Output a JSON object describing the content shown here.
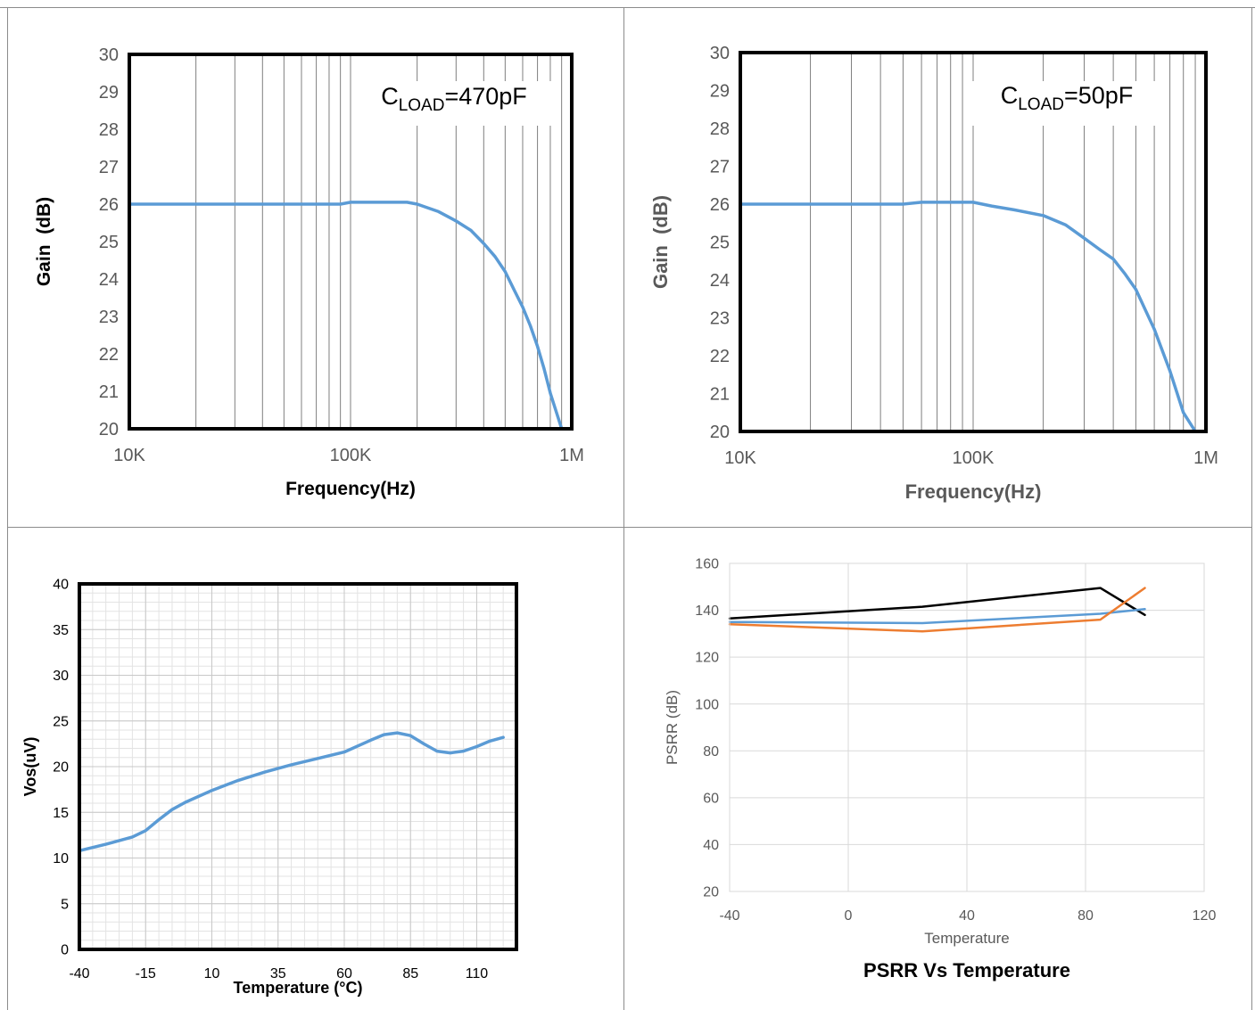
{
  "chart_data": [
    {
      "type": "line",
      "xscale": "log",
      "xlim": [
        10000,
        1000000
      ],
      "ylim": [
        20,
        30
      ],
      "xticks": [
        10000,
        100000,
        1000000
      ],
      "xtick_labels": [
        "10K",
        "100K",
        "1M"
      ],
      "yticks": [
        20,
        21,
        22,
        23,
        24,
        25,
        26,
        27,
        28,
        29,
        30
      ],
      "xlabel": "Frequency(Hz)",
      "ylabel": "Gain  (dB)",
      "annotation": {
        "prefix": "C",
        "sub": "LOAD",
        "suffix": "=470pF"
      },
      "grid": "vertical",
      "series": [
        {
          "color": "#5b9bd5",
          "x": [
            10000,
            20000,
            50000,
            90000,
            100000,
            150000,
            180000,
            200000,
            250000,
            300000,
            350000,
            400000,
            450000,
            500000,
            550000,
            600000,
            650000,
            700000,
            750000,
            800000,
            900000
          ],
          "y": [
            26.0,
            26.0,
            26.0,
            26.0,
            26.05,
            26.05,
            26.05,
            26.0,
            25.8,
            25.55,
            25.3,
            24.95,
            24.6,
            24.2,
            23.7,
            23.25,
            22.75,
            22.2,
            21.6,
            20.95,
            20.0
          ]
        }
      ]
    },
    {
      "type": "line",
      "xscale": "log",
      "xlim": [
        10000,
        1000000
      ],
      "ylim": [
        20,
        30
      ],
      "xticks": [
        10000,
        100000,
        1000000
      ],
      "xtick_labels": [
        "10K",
        "100K",
        "1M"
      ],
      "yticks": [
        20,
        21,
        22,
        23,
        24,
        25,
        26,
        27,
        28,
        29,
        30
      ],
      "xlabel": "Frequency(Hz)",
      "ylabel": "Gain  (dB)",
      "annotation": {
        "prefix": "C",
        "sub": "LOAD",
        "suffix": "=50pF"
      },
      "grid": "vertical",
      "series": [
        {
          "color": "#5b9bd5",
          "x": [
            10000,
            30000,
            50000,
            60000,
            80000,
            100000,
            120000,
            150000,
            200000,
            250000,
            300000,
            350000,
            400000,
            450000,
            500000,
            600000,
            700000,
            800000,
            900000
          ],
          "y": [
            26.0,
            26.0,
            26.0,
            26.05,
            26.05,
            26.05,
            25.95,
            25.85,
            25.7,
            25.45,
            25.1,
            24.8,
            24.55,
            24.15,
            23.75,
            22.7,
            21.6,
            20.5,
            20.0
          ]
        }
      ]
    },
    {
      "type": "line",
      "xlim": [
        -40,
        125
      ],
      "ylim": [
        0,
        40
      ],
      "xticks": [
        -40,
        -15,
        10,
        35,
        60,
        85,
        110
      ],
      "yticks": [
        0,
        5,
        10,
        15,
        20,
        25,
        30,
        35,
        40
      ],
      "xlabel": "Temperature (°C)",
      "ylabel": "Vos(uV)",
      "grid": "major-minor",
      "series": [
        {
          "color": "#5b9bd5",
          "x": [
            -40,
            -30,
            -20,
            -15,
            -10,
            -5,
            0,
            10,
            20,
            30,
            40,
            50,
            60,
            70,
            75,
            80,
            85,
            90,
            95,
            100,
            105,
            110,
            115,
            120
          ],
          "y": [
            10.8,
            11.5,
            12.3,
            13.0,
            14.2,
            15.3,
            16.1,
            17.4,
            18.5,
            19.4,
            20.2,
            20.9,
            21.6,
            22.9,
            23.5,
            23.7,
            23.4,
            22.5,
            21.7,
            21.5,
            21.7,
            22.2,
            22.8,
            23.2
          ]
        }
      ]
    },
    {
      "type": "line",
      "xlim": [
        -40,
        120
      ],
      "ylim": [
        20,
        160
      ],
      "xticks": [
        -40,
        0,
        40,
        80,
        120
      ],
      "yticks": [
        20,
        40,
        60,
        80,
        100,
        120,
        140,
        160
      ],
      "xlabel": "Temperature",
      "ylabel": "PSRR (dB)",
      "title": "PSRR Vs Temperature",
      "grid": "major",
      "series": [
        {
          "color": "#000000",
          "x": [
            -40,
            25,
            85,
            100
          ],
          "y": [
            136.5,
            141.5,
            149.5,
            138
          ]
        },
        {
          "color": "#5b9bd5",
          "x": [
            -40,
            25,
            85,
            100
          ],
          "y": [
            135,
            134.5,
            138.5,
            140.5
          ]
        },
        {
          "color": "#ed7d31",
          "x": [
            -40,
            25,
            85,
            100
          ],
          "y": [
            134,
            131,
            136,
            149.5
          ]
        }
      ]
    }
  ]
}
